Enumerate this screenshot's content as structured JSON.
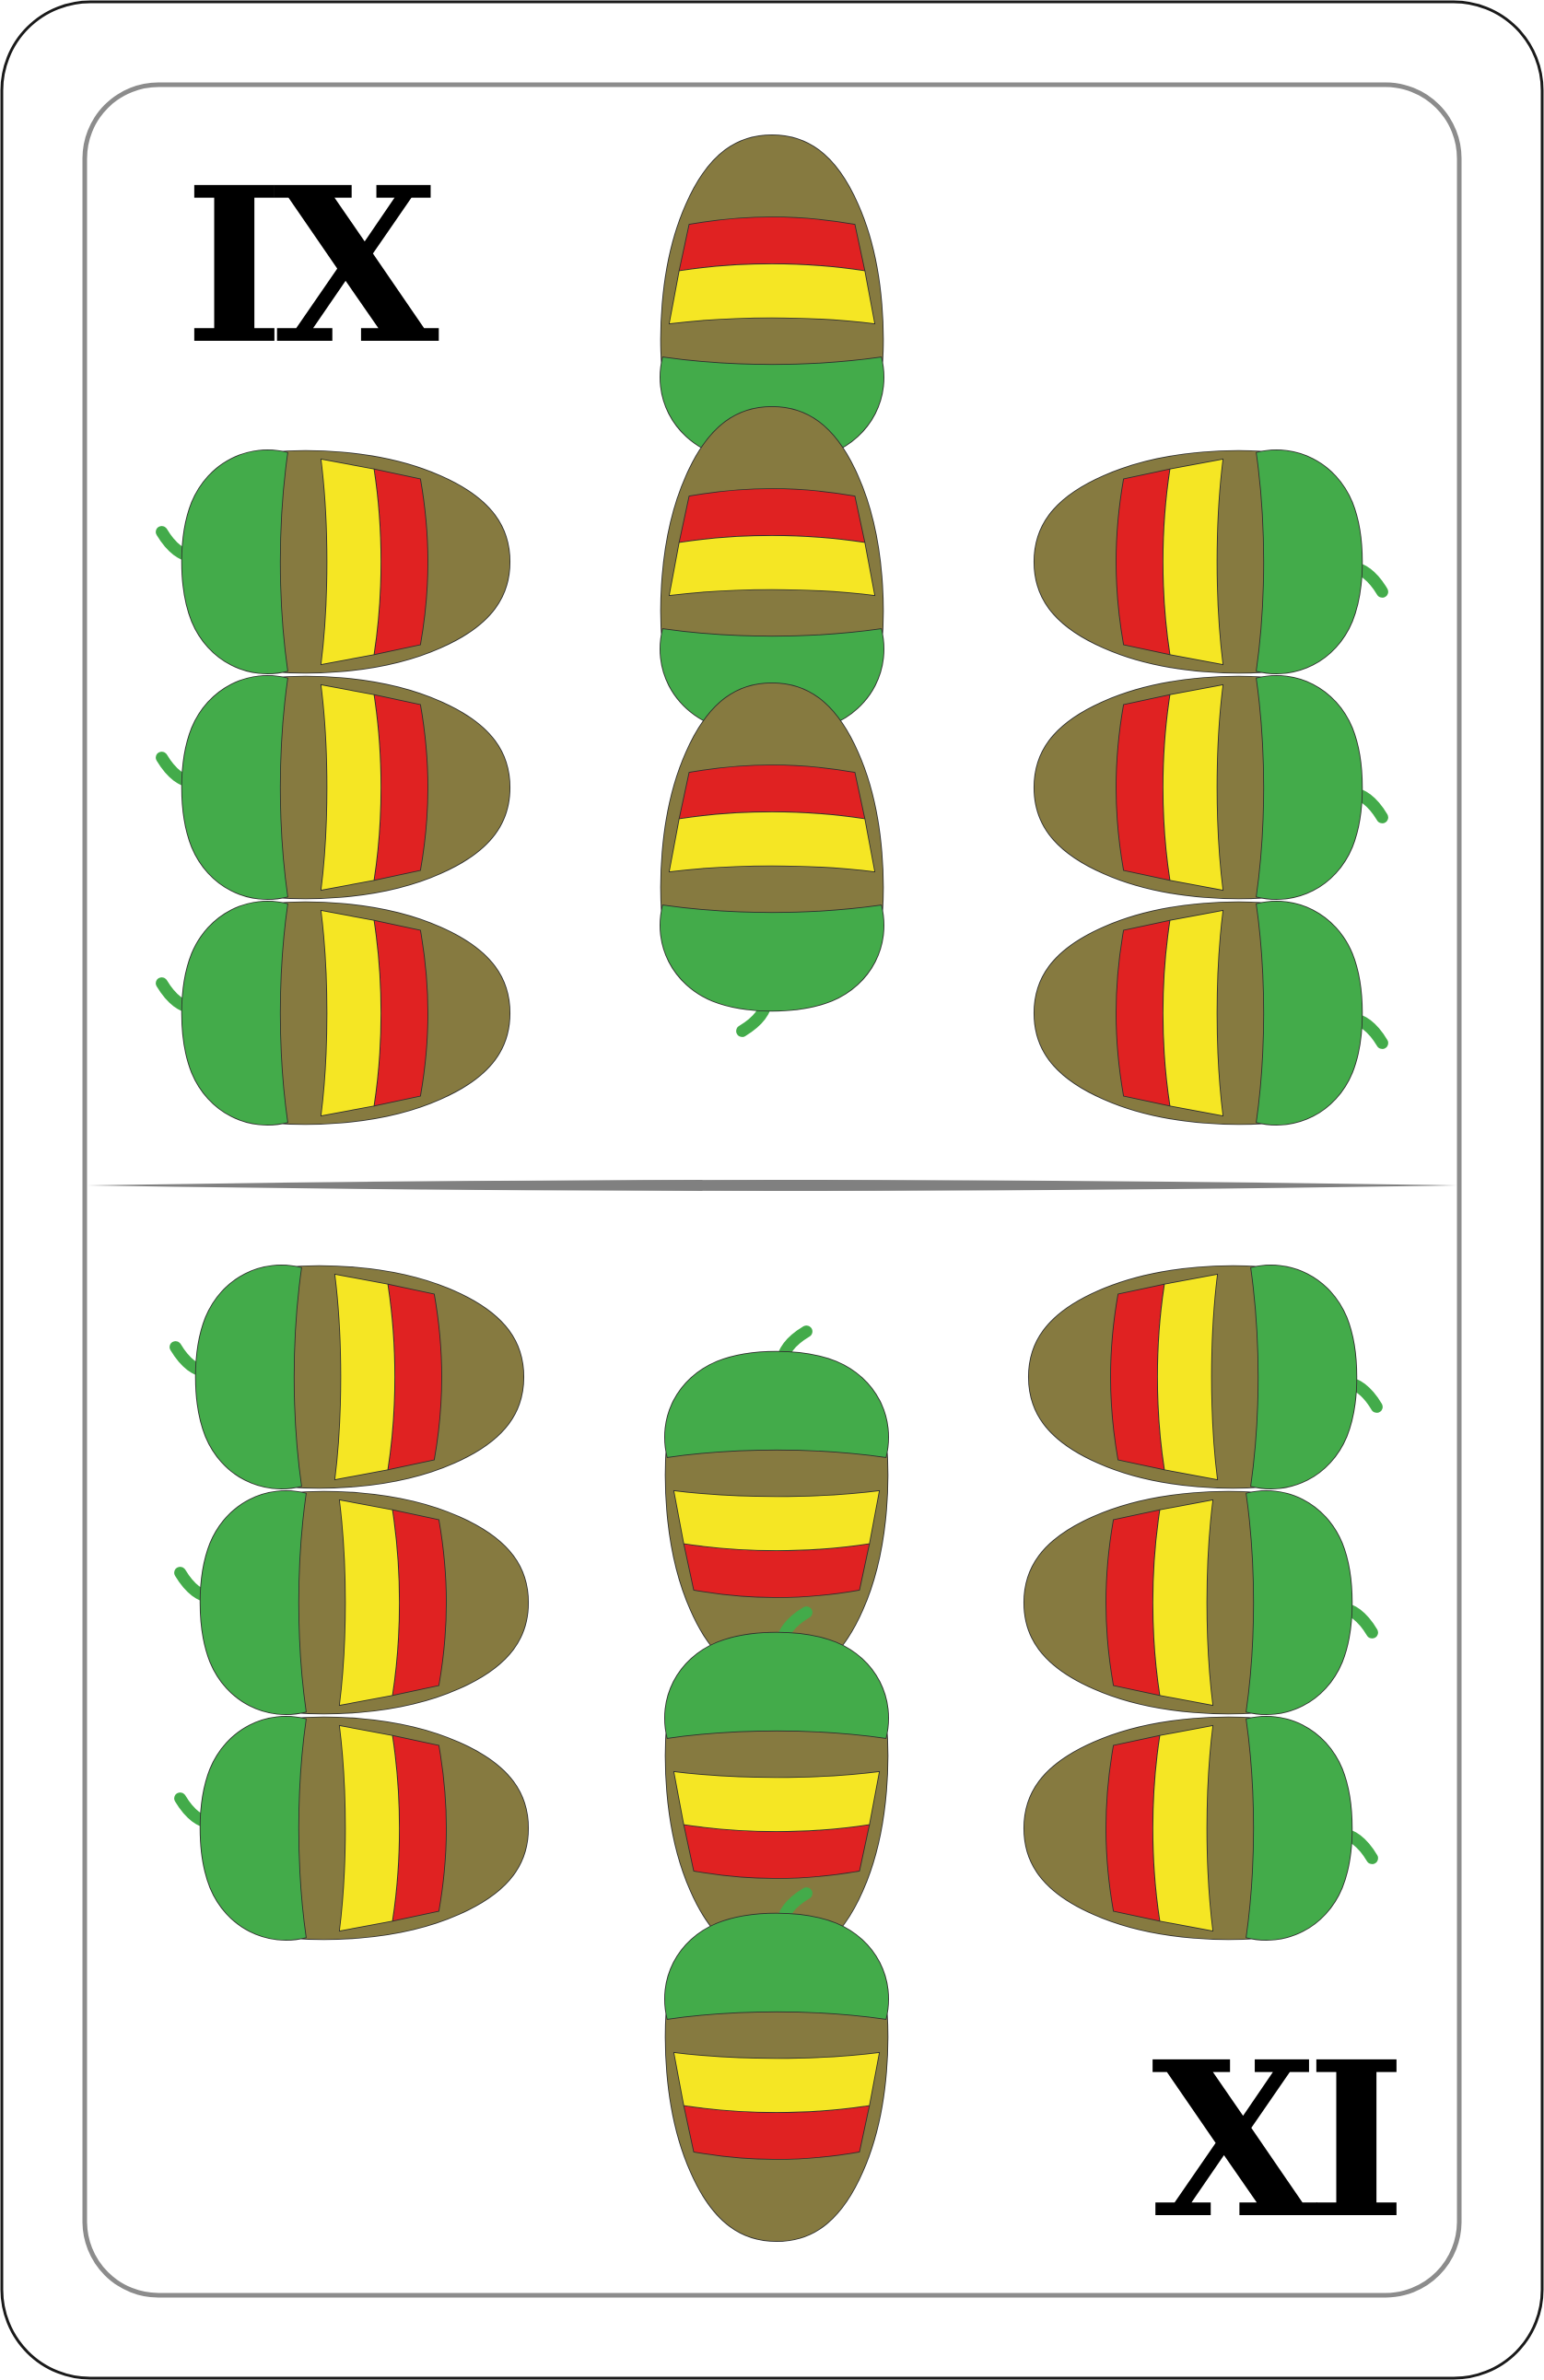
{
  "card": {
    "rank_top": "IX",
    "rank_bottom": "XI",
    "suit": "acorns",
    "pip_count_upper": 9,
    "pip_count_lower": 9
  },
  "colors": {
    "card_background": "#ffffff",
    "card_outline": "#1a1a1a",
    "inner_frame": "#8c8c8c",
    "divider": "#808080",
    "rank_text": "#000000",
    "acorn_cap": "#43ab4a",
    "acorn_body": "#867a40",
    "stripe_red": "#e02222",
    "stripe_yellow": "#f5e624",
    "acorn_stroke": "#2e2e2e"
  },
  "icons": {
    "pip": "acorn-icon"
  }
}
